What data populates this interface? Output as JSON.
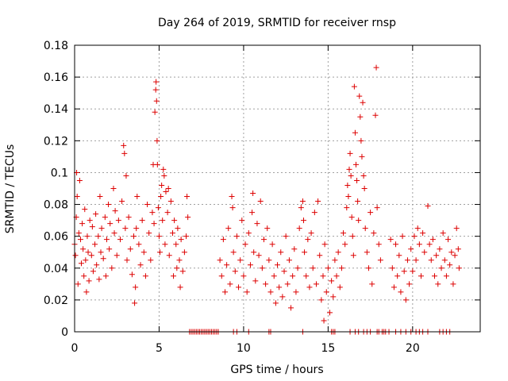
{
  "chart_data": {
    "type": "scatter",
    "title": "Day 264 of 2019, SRMTID for receiver rnsp",
    "xlabel": "GPS time / hours",
    "ylabel": "SRMTID / TECUs",
    "xlim": [
      0,
      24
    ],
    "ylim": [
      0,
      0.18
    ],
    "xticks": [
      0,
      5,
      10,
      15,
      20
    ],
    "yticks": [
      0,
      0.02,
      0.04,
      0.06,
      0.08,
      0.1,
      0.12,
      0.14,
      0.16,
      0.18
    ],
    "ytick_labels": [
      "0",
      "0.02",
      "0.04",
      "0.06",
      "0.08",
      "0.1",
      "0.12",
      "0.14",
      "0.16",
      "0.18"
    ],
    "grid": true,
    "marker": "+",
    "marker_color": "#dd0000",
    "series": [
      {
        "name": "SRMTID",
        "points": [
          [
            0.0,
            0.055
          ],
          [
            0.05,
            0.048
          ],
          [
            0.1,
            0.072
          ],
          [
            0.12,
            0.1
          ],
          [
            0.15,
            0.085
          ],
          [
            0.2,
            0.03
          ],
          [
            0.25,
            0.062
          ],
          [
            0.3,
            0.095
          ],
          [
            0.35,
            0.058
          ],
          [
            0.4,
            0.043
          ],
          [
            0.45,
            0.068
          ],
          [
            0.5,
            0.052
          ],
          [
            0.55,
            0.035
          ],
          [
            0.6,
            0.077
          ],
          [
            0.65,
            0.045
          ],
          [
            0.7,
            0.025
          ],
          [
            0.75,
            0.06
          ],
          [
            0.8,
            0.05
          ],
          [
            0.85,
            0.032
          ],
          [
            0.9,
            0.07
          ],
          [
            1.0,
            0.048
          ],
          [
            1.05,
            0.066
          ],
          [
            1.1,
            0.038
          ],
          [
            1.2,
            0.055
          ],
          [
            1.25,
            0.074
          ],
          [
            1.3,
            0.042
          ],
          [
            1.4,
            0.06
          ],
          [
            1.45,
            0.033
          ],
          [
            1.5,
            0.085
          ],
          [
            1.55,
            0.05
          ],
          [
            1.6,
            0.065
          ],
          [
            1.7,
            0.046
          ],
          [
            1.8,
            0.072
          ],
          [
            1.85,
            0.035
          ],
          [
            1.9,
            0.058
          ],
          [
            2.0,
            0.08
          ],
          [
            2.05,
            0.052
          ],
          [
            2.1,
            0.068
          ],
          [
            2.2,
            0.04
          ],
          [
            2.3,
            0.09
          ],
          [
            2.35,
            0.062
          ],
          [
            2.4,
            0.076
          ],
          [
            2.5,
            0.048
          ],
          [
            2.6,
            0.07
          ],
          [
            2.7,
            0.058
          ],
          [
            2.8,
            0.082
          ],
          [
            2.9,
            0.117
          ],
          [
            2.95,
            0.112
          ],
          [
            3.0,
            0.065
          ],
          [
            3.05,
            0.098
          ],
          [
            3.1,
            0.045
          ],
          [
            3.2,
            0.072
          ],
          [
            3.3,
            0.052
          ],
          [
            3.4,
            0.036
          ],
          [
            3.5,
            0.06
          ],
          [
            3.55,
            0.018
          ],
          [
            3.6,
            0.028
          ],
          [
            3.65,
            0.065
          ],
          [
            3.7,
            0.085
          ],
          [
            3.8,
            0.055
          ],
          [
            3.9,
            0.042
          ],
          [
            4.0,
            0.07
          ],
          [
            4.1,
            0.05
          ],
          [
            4.2,
            0.035
          ],
          [
            4.3,
            0.08
          ],
          [
            4.4,
            0.062
          ],
          [
            4.5,
            0.045
          ],
          [
            4.6,
            0.075
          ],
          [
            4.65,
            0.105
          ],
          [
            4.7,
            0.068
          ],
          [
            4.75,
            0.138
          ],
          [
            4.8,
            0.152
          ],
          [
            4.82,
            0.157
          ],
          [
            4.85,
            0.145
          ],
          [
            4.88,
            0.12
          ],
          [
            4.9,
            0.105
          ],
          [
            4.95,
            0.078
          ],
          [
            5.0,
            0.06
          ],
          [
            5.05,
            0.05
          ],
          [
            5.1,
            0.085
          ],
          [
            5.15,
            0.092
          ],
          [
            5.2,
            0.07
          ],
          [
            5.25,
            0.102
          ],
          [
            5.3,
            0.098
          ],
          [
            5.35,
            0.055
          ],
          [
            5.4,
            0.088
          ],
          [
            5.5,
            0.075
          ],
          [
            5.55,
            0.09
          ],
          [
            5.6,
            0.048
          ],
          [
            5.7,
            0.082
          ],
          [
            5.8,
            0.062
          ],
          [
            5.85,
            0.035
          ],
          [
            5.9,
            0.07
          ],
          [
            6.0,
            0.055
          ],
          [
            6.05,
            0.04
          ],
          [
            6.1,
            0.065
          ],
          [
            6.2,
            0.045
          ],
          [
            6.25,
            0.028
          ],
          [
            6.3,
            0.058
          ],
          [
            6.4,
            0.038
          ],
          [
            6.5,
            0.05
          ],
          [
            6.6,
            0.06
          ],
          [
            6.65,
            0.085
          ],
          [
            6.7,
            0.072
          ],
          [
            8.6,
            0.045
          ],
          [
            8.7,
            0.035
          ],
          [
            8.8,
            0.058
          ],
          [
            8.9,
            0.025
          ],
          [
            9.0,
            0.042
          ],
          [
            9.1,
            0.065
          ],
          [
            9.2,
            0.03
          ],
          [
            9.3,
            0.085
          ],
          [
            9.35,
            0.078
          ],
          [
            9.4,
            0.05
          ],
          [
            9.5,
            0.038
          ],
          [
            9.6,
            0.06
          ],
          [
            9.7,
            0.028
          ],
          [
            9.8,
            0.045
          ],
          [
            9.9,
            0.07
          ],
          [
            10.0,
            0.035
          ],
          [
            10.1,
            0.055
          ],
          [
            10.2,
            0.025
          ],
          [
            10.3,
            0.062
          ],
          [
            10.4,
            0.042
          ],
          [
            10.5,
            0.075
          ],
          [
            10.55,
            0.087
          ],
          [
            10.6,
            0.05
          ],
          [
            10.7,
            0.032
          ],
          [
            10.8,
            0.068
          ],
          [
            10.9,
            0.048
          ],
          [
            11.0,
            0.082
          ],
          [
            11.1,
            0.04
          ],
          [
            11.2,
            0.058
          ],
          [
            11.3,
            0.03
          ],
          [
            11.4,
            0.065
          ],
          [
            11.5,
            0.045
          ],
          [
            11.6,
            0.025
          ],
          [
            11.7,
            0.055
          ],
          [
            11.8,
            0.035
          ],
          [
            11.9,
            0.018
          ],
          [
            12.0,
            0.042
          ],
          [
            12.1,
            0.028
          ],
          [
            12.2,
            0.05
          ],
          [
            12.3,
            0.022
          ],
          [
            12.4,
            0.038
          ],
          [
            12.5,
            0.06
          ],
          [
            12.6,
            0.03
          ],
          [
            12.7,
            0.045
          ],
          [
            12.8,
            0.015
          ],
          [
            12.9,
            0.035
          ],
          [
            13.0,
            0.052
          ],
          [
            13.1,
            0.025
          ],
          [
            13.2,
            0.04
          ],
          [
            13.3,
            0.065
          ],
          [
            13.4,
            0.078
          ],
          [
            13.5,
            0.082
          ],
          [
            13.55,
            0.07
          ],
          [
            13.6,
            0.05
          ],
          [
            13.7,
            0.035
          ],
          [
            13.8,
            0.058
          ],
          [
            13.9,
            0.028
          ],
          [
            14.0,
            0.062
          ],
          [
            14.1,
            0.04
          ],
          [
            14.2,
            0.075
          ],
          [
            14.3,
            0.03
          ],
          [
            14.4,
            0.082
          ],
          [
            14.5,
            0.048
          ],
          [
            14.6,
            0.02
          ],
          [
            14.7,
            0.035
          ],
          [
            14.75,
            0.007
          ],
          [
            14.8,
            0.055
          ],
          [
            14.9,
            0.025
          ],
          [
            15.0,
            0.04
          ],
          [
            15.1,
            0.012
          ],
          [
            15.2,
            0.032
          ],
          [
            15.3,
            0.022
          ],
          [
            15.4,
            0.045
          ],
          [
            15.5,
            0.035
          ],
          [
            15.6,
            0.05
          ],
          [
            15.7,
            0.028
          ],
          [
            15.8,
            0.04
          ],
          [
            15.9,
            0.062
          ],
          [
            16.0,
            0.055
          ],
          [
            16.1,
            0.078
          ],
          [
            16.15,
            0.092
          ],
          [
            16.2,
            0.085
          ],
          [
            16.25,
            0.102
          ],
          [
            16.3,
            0.112
          ],
          [
            16.35,
            0.098
          ],
          [
            16.4,
            0.072
          ],
          [
            16.45,
            0.06
          ],
          [
            16.5,
            0.048
          ],
          [
            16.55,
            0.154
          ],
          [
            16.6,
            0.125
          ],
          [
            16.65,
            0.105
          ],
          [
            16.7,
            0.095
          ],
          [
            16.75,
            0.082
          ],
          [
            16.8,
            0.07
          ],
          [
            16.85,
            0.148
          ],
          [
            16.9,
            0.135
          ],
          [
            16.95,
            0.12
          ],
          [
            17.0,
            0.11
          ],
          [
            17.05,
            0.144
          ],
          [
            17.1,
            0.098
          ],
          [
            17.15,
            0.09
          ],
          [
            17.2,
            0.065
          ],
          [
            17.3,
            0.05
          ],
          [
            17.4,
            0.04
          ],
          [
            17.5,
            0.075
          ],
          [
            17.6,
            0.03
          ],
          [
            17.7,
            0.062
          ],
          [
            17.8,
            0.136
          ],
          [
            17.85,
            0.166
          ],
          [
            17.9,
            0.078
          ],
          [
            18.0,
            0.055
          ],
          [
            18.1,
            0.045
          ],
          [
            18.7,
            0.058
          ],
          [
            18.8,
            0.04
          ],
          [
            18.9,
            0.028
          ],
          [
            19.0,
            0.055
          ],
          [
            19.1,
            0.035
          ],
          [
            19.2,
            0.048
          ],
          [
            19.3,
            0.025
          ],
          [
            19.4,
            0.06
          ],
          [
            19.5,
            0.038
          ],
          [
            19.6,
            0.02
          ],
          [
            19.7,
            0.045
          ],
          [
            19.8,
            0.03
          ],
          [
            19.9,
            0.052
          ],
          [
            20.0,
            0.038
          ],
          [
            20.1,
            0.06
          ],
          [
            20.2,
            0.045
          ],
          [
            20.3,
            0.065
          ],
          [
            20.4,
            0.055
          ],
          [
            20.5,
            0.035
          ],
          [
            20.6,
            0.062
          ],
          [
            20.7,
            0.05
          ],
          [
            20.9,
            0.079
          ],
          [
            21.0,
            0.055
          ],
          [
            21.1,
            0.045
          ],
          [
            21.2,
            0.058
          ],
          [
            21.3,
            0.035
          ],
          [
            21.4,
            0.048
          ],
          [
            21.5,
            0.03
          ],
          [
            21.6,
            0.052
          ],
          [
            21.7,
            0.04
          ],
          [
            21.8,
            0.062
          ],
          [
            21.9,
            0.045
          ],
          [
            22.0,
            0.035
          ],
          [
            22.1,
            0.058
          ],
          [
            22.2,
            0.042
          ],
          [
            22.3,
            0.05
          ],
          [
            22.4,
            0.03
          ],
          [
            22.5,
            0.048
          ],
          [
            22.6,
            0.065
          ],
          [
            22.7,
            0.052
          ],
          [
            22.75,
            0.04
          ]
        ]
      }
    ],
    "zero_markers": [
      [
        6.8,
        0
      ],
      [
        6.9,
        0
      ],
      [
        7.0,
        0
      ],
      [
        7.1,
        0
      ],
      [
        7.2,
        0
      ],
      [
        7.3,
        0
      ],
      [
        7.4,
        0
      ],
      [
        7.5,
        0
      ],
      [
        7.6,
        0
      ],
      [
        7.7,
        0
      ],
      [
        7.8,
        0
      ],
      [
        7.9,
        0
      ],
      [
        8.0,
        0
      ],
      [
        8.1,
        0
      ],
      [
        8.2,
        0
      ],
      [
        8.3,
        0
      ],
      [
        8.4,
        0
      ],
      [
        8.5,
        0
      ],
      [
        9.4,
        0
      ],
      [
        9.6,
        0
      ],
      [
        10.3,
        0
      ],
      [
        11.5,
        0
      ],
      [
        11.6,
        0
      ],
      [
        13.5,
        0
      ],
      [
        15.2,
        0
      ],
      [
        15.3,
        0
      ],
      [
        15.4,
        0
      ],
      [
        16.3,
        0
      ],
      [
        16.6,
        0
      ],
      [
        16.8,
        0
      ],
      [
        17.1,
        0
      ],
      [
        17.3,
        0
      ],
      [
        17.5,
        0
      ],
      [
        17.9,
        0
      ],
      [
        18.0,
        0
      ],
      [
        18.2,
        0
      ],
      [
        18.3,
        0
      ],
      [
        18.4,
        0
      ],
      [
        18.6,
        0
      ],
      [
        19.0,
        0
      ],
      [
        19.3,
        0
      ],
      [
        19.6,
        0
      ],
      [
        19.9,
        0
      ],
      [
        20.2,
        0
      ],
      [
        20.4,
        0
      ],
      [
        20.6,
        0
      ],
      [
        20.9,
        0
      ],
      [
        21.6,
        0
      ],
      [
        21.8,
        0
      ],
      [
        22.0,
        0
      ],
      [
        22.2,
        0
      ]
    ]
  }
}
